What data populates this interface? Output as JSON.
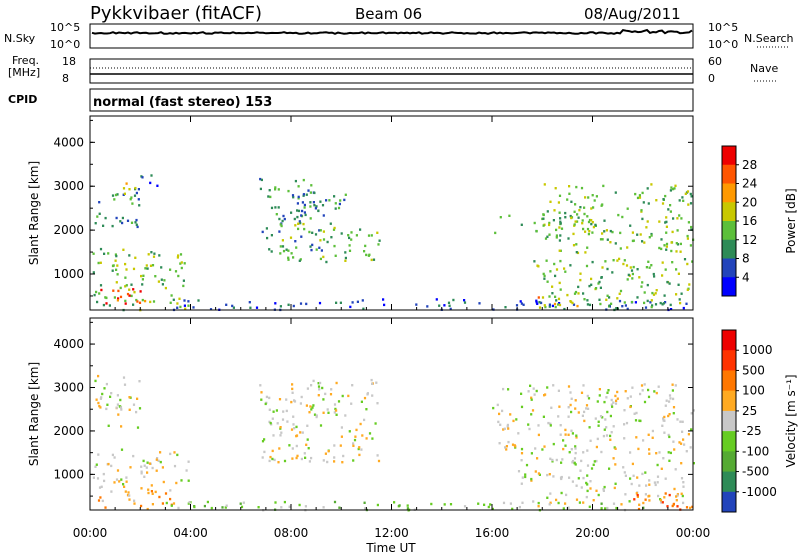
{
  "header": {
    "title": "Pykkvibaer (fitACF)",
    "beam": "Beam 06",
    "date": "08/Aug/2011"
  },
  "strips": {
    "nsky_label": "N.Sky",
    "nsky_ticks": [
      "10^5",
      "10^0"
    ],
    "nsearch_label": "N.Search",
    "nsearch_ticks": [
      "10^5",
      "10^0"
    ],
    "freq_label": "Freq.",
    "freq_unit": "[MHz]",
    "freq_ticks": [
      "18",
      "8"
    ],
    "nave_label": "Nave",
    "nave_ticks": [
      "60",
      "0"
    ],
    "cpid_label": "CPID",
    "cpid_text": "normal (fast stereo) 153"
  },
  "chart_data": [
    {
      "type": "heatmap",
      "name_parameter": "Power",
      "ylabel": "Slant Range [km]",
      "xlabel": "Time UT",
      "x_ticks": [
        "00:00",
        "04:00",
        "08:00",
        "12:00",
        "16:00",
        "20:00",
        "00:00"
      ],
      "x_range_hours": [
        0,
        24
      ],
      "y_ticks": [
        1000,
        2000,
        3000,
        4000
      ],
      "ylim": [
        180,
        4600
      ],
      "colorbar_label": "Power [dB]",
      "colorbar_ticks": [
        "28",
        "24",
        "20",
        "16",
        "12",
        "8",
        "4"
      ],
      "colors": [
        "#0000ff",
        "#2244bb",
        "#2e8b57",
        "#5cbf3a",
        "#c8c800",
        "#ff9900",
        "#ff5500",
        "#ee0000"
      ],
      "regions": [
        {
          "t0": 0.1,
          "t1": 3.9,
          "r0": 200,
          "r1": 1600,
          "level": 3
        },
        {
          "t0": 0.2,
          "t1": 2.2,
          "r0": 250,
          "r1": 700,
          "level": 6
        },
        {
          "t0": 0.1,
          "t1": 2.0,
          "r0": 2100,
          "r1": 3000,
          "level": 2
        },
        {
          "t0": 0.8,
          "t1": 1.8,
          "r0": 2700,
          "r1": 3100,
          "level": 4
        },
        {
          "t0": 2.0,
          "t1": 3.0,
          "r0": 3000,
          "r1": 3300,
          "level": 1
        },
        {
          "t0": 6.7,
          "t1": 9.2,
          "r0": 1500,
          "r1": 3200,
          "level": 2
        },
        {
          "t0": 7.5,
          "t1": 11.5,
          "r0": 1300,
          "r1": 2200,
          "level": 3
        },
        {
          "t0": 8.2,
          "t1": 10.2,
          "r0": 2300,
          "r1": 2900,
          "level": 2
        },
        {
          "t0": 3.0,
          "t1": 24.0,
          "r0": 200,
          "r1": 450,
          "level": 1
        },
        {
          "t0": 16.0,
          "t1": 20.5,
          "r0": 1900,
          "r1": 2400,
          "level": 3
        },
        {
          "t0": 18.0,
          "t1": 24.0,
          "r0": 1500,
          "r1": 3100,
          "level": 3
        },
        {
          "t0": 17.5,
          "t1": 24.0,
          "r0": 250,
          "r1": 1400,
          "level": 3
        },
        {
          "t0": 17.5,
          "t1": 19.5,
          "r0": 250,
          "r1": 550,
          "level": 5
        }
      ]
    },
    {
      "type": "heatmap",
      "name_parameter": "Velocity",
      "ylabel": "Slant Range [km]",
      "xlabel": "Time UT",
      "x_ticks": [
        "00:00",
        "04:00",
        "08:00",
        "12:00",
        "16:00",
        "20:00",
        "00:00"
      ],
      "x_range_hours": [
        0,
        24
      ],
      "y_ticks": [
        1000,
        2000,
        3000,
        4000
      ],
      "ylim": [
        180,
        4600
      ],
      "colorbar_label": "Velocity [m s⁻¹]",
      "colorbar_ticks": [
        "1000",
        "500",
        "100",
        "25",
        "-25",
        "-100",
        "-500",
        "-1000"
      ],
      "colors": [
        "#2244bb",
        "#2e8b57",
        "#55aa33",
        "#66cc22",
        "#c8c8c8",
        "#ffaa22",
        "#ff7700",
        "#ff3300",
        "#ee0000"
      ],
      "regions": [
        {
          "t0": 0.1,
          "t1": 3.9,
          "r0": 700,
          "r1": 1600,
          "level": 4
        },
        {
          "t0": 0.2,
          "t1": 3.5,
          "r0": 200,
          "r1": 700,
          "level": 5
        },
        {
          "t0": 0.1,
          "t1": 2.0,
          "r0": 2100,
          "r1": 3300,
          "level": 4
        },
        {
          "t0": 6.7,
          "t1": 11.5,
          "r0": 1300,
          "r1": 3200,
          "level": 4
        },
        {
          "t0": 16.0,
          "t1": 24.0,
          "r0": 1500,
          "r1": 3100,
          "level": 4
        },
        {
          "t0": 17.0,
          "t1": 24.0,
          "r0": 250,
          "r1": 1400,
          "level": 4
        },
        {
          "t0": 3.0,
          "t1": 22.0,
          "r0": 200,
          "r1": 400,
          "level": 3
        },
        {
          "t0": 21.5,
          "t1": 24.0,
          "r0": 200,
          "r1": 600,
          "level": 6
        }
      ]
    }
  ],
  "xlabel": "Time UT"
}
